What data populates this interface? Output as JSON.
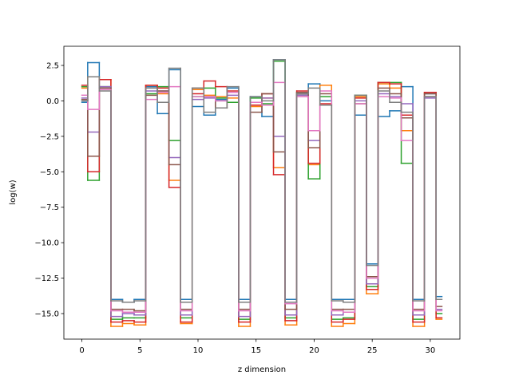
{
  "chart_data": {
    "type": "step",
    "xlabel": "z dimension",
    "ylabel": "log(w)",
    "x": [
      0,
      1,
      2,
      3,
      4,
      5,
      6,
      7,
      8,
      9,
      10,
      11,
      12,
      13,
      14,
      15,
      16,
      17,
      18,
      19,
      20,
      21,
      22,
      23,
      24,
      25,
      26,
      27,
      28,
      29,
      30,
      31
    ],
    "xlim": [
      -1.55,
      32.55
    ],
    "xticks": [
      0,
      5,
      10,
      15,
      20,
      25,
      30
    ],
    "ylim": [
      -16.8,
      3.85
    ],
    "yticks": [
      {
        "value": 2.5,
        "label": "2.5"
      },
      {
        "value": 0,
        "label": "0.0"
      },
      {
        "value": -2.5,
        "label": "−2.5"
      },
      {
        "value": -5,
        "label": "−5.0"
      },
      {
        "value": -7.5,
        "label": "−7.5"
      },
      {
        "value": -10,
        "label": "−10.0"
      },
      {
        "value": -12.5,
        "label": "−12.5"
      },
      {
        "value": -15,
        "label": "−15.0"
      }
    ],
    "grid": false,
    "series": [
      {
        "color": "#1f77b4",
        "values": [
          -0.1,
          2.7,
          0.8,
          -14.0,
          -14.2,
          -14.0,
          1.0,
          -0.9,
          2.2,
          -14.0,
          -0.4,
          -1.0,
          0.1,
          0.9,
          -14.0,
          0.3,
          -1.1,
          2.9,
          -14.0,
          0.5,
          1.2,
          0.0,
          -14.0,
          -14.0,
          -1.0,
          -11.5,
          -1.1,
          -0.7,
          1.0,
          -14.0,
          0.5,
          -13.8
        ]
      },
      {
        "color": "#ff7f0e",
        "values": [
          0.9,
          1.7,
          1.5,
          -15.9,
          -15.7,
          -15.8,
          1.1,
          0.5,
          -5.6,
          -15.7,
          0.8,
          0.4,
          0.3,
          0.2,
          -15.9,
          -0.4,
          0.2,
          -4.7,
          -15.8,
          0.4,
          -4.5,
          1.1,
          -15.9,
          -15.7,
          0.3,
          -13.6,
          1.2,
          0.9,
          -2.1,
          -15.9,
          0.6,
          -15.4
        ]
      },
      {
        "color": "#2ca02c",
        "values": [
          1.0,
          -5.6,
          1.0,
          -15.4,
          -15.3,
          -15.3,
          0.5,
          1.0,
          -2.8,
          -15.3,
          0.3,
          0.9,
          0.2,
          -0.1,
          -15.4,
          0.2,
          -0.2,
          2.8,
          -15.3,
          0.6,
          -5.5,
          0.3,
          -15.4,
          -15.3,
          0.4,
          -13.1,
          1.3,
          1.3,
          -4.4,
          -15.4,
          0.3,
          -15.0
        ]
      },
      {
        "color": "#d62728",
        "values": [
          1.1,
          -5.0,
          1.5,
          -15.6,
          -15.5,
          -15.6,
          1.1,
          0.9,
          -6.1,
          -15.6,
          0.5,
          1.4,
          1.0,
          0.7,
          -15.6,
          -0.3,
          0.5,
          -5.2,
          -15.5,
          0.7,
          -4.4,
          -0.2,
          -15.6,
          -15.4,
          0.2,
          -13.3,
          1.3,
          1.2,
          -1.0,
          -15.6,
          0.6,
          -15.3
        ]
      },
      {
        "color": "#9467bd",
        "values": [
          0.2,
          -2.2,
          1.0,
          -15.2,
          -15.0,
          -15.1,
          0.7,
          0.7,
          -4.0,
          -15.1,
          0.1,
          0.2,
          0.0,
          0.4,
          -15.2,
          -0.1,
          0.2,
          -2.5,
          -15.1,
          0.4,
          -2.8,
          -0.3,
          -15.1,
          -14.9,
          0.0,
          -12.9,
          0.5,
          0.3,
          -0.2,
          -15.1,
          0.2,
          -14.7
        ]
      },
      {
        "color": "#8c564b",
        "values": [
          0.1,
          -3.9,
          0.9,
          -14.7,
          -14.7,
          -14.8,
          0.4,
          0.7,
          -4.5,
          -14.7,
          0.9,
          0.3,
          -0.5,
          0.6,
          -14.7,
          -0.8,
          0.5,
          -3.6,
          -14.7,
          0.6,
          -3.3,
          0.5,
          -14.7,
          -14.7,
          -0.2,
          -12.4,
          0.9,
          0.5,
          -1.2,
          -14.7,
          0.5,
          -14.5
        ]
      },
      {
        "color": "#e377c2",
        "values": [
          0.4,
          -0.6,
          0.8,
          -14.8,
          -14.9,
          -14.9,
          0.1,
          0.6,
          1.0,
          -14.8,
          0.3,
          0.3,
          0.0,
          0.6,
          -14.8,
          -0.1,
          -0.3,
          1.3,
          -14.3,
          0.3,
          -2.1,
          0.7,
          -14.8,
          -14.9,
          -0.2,
          -12.5,
          0.3,
          0.2,
          -2.8,
          -14.8,
          0.3,
          -14.8
        ]
      },
      {
        "color": "#7f7f7f",
        "values": [
          0.0,
          1.7,
          0.7,
          -14.1,
          -14.2,
          -14.1,
          0.9,
          -0.1,
          2.3,
          -14.2,
          0.9,
          -0.8,
          -0.5,
          1.0,
          -14.2,
          0.3,
          0.0,
          2.9,
          -14.2,
          0.5,
          0.9,
          -0.3,
          -14.1,
          -14.2,
          0.4,
          -11.6,
          0.7,
          -0.1,
          -0.8,
          -14.1,
          0.3,
          -14.0
        ]
      }
    ]
  }
}
